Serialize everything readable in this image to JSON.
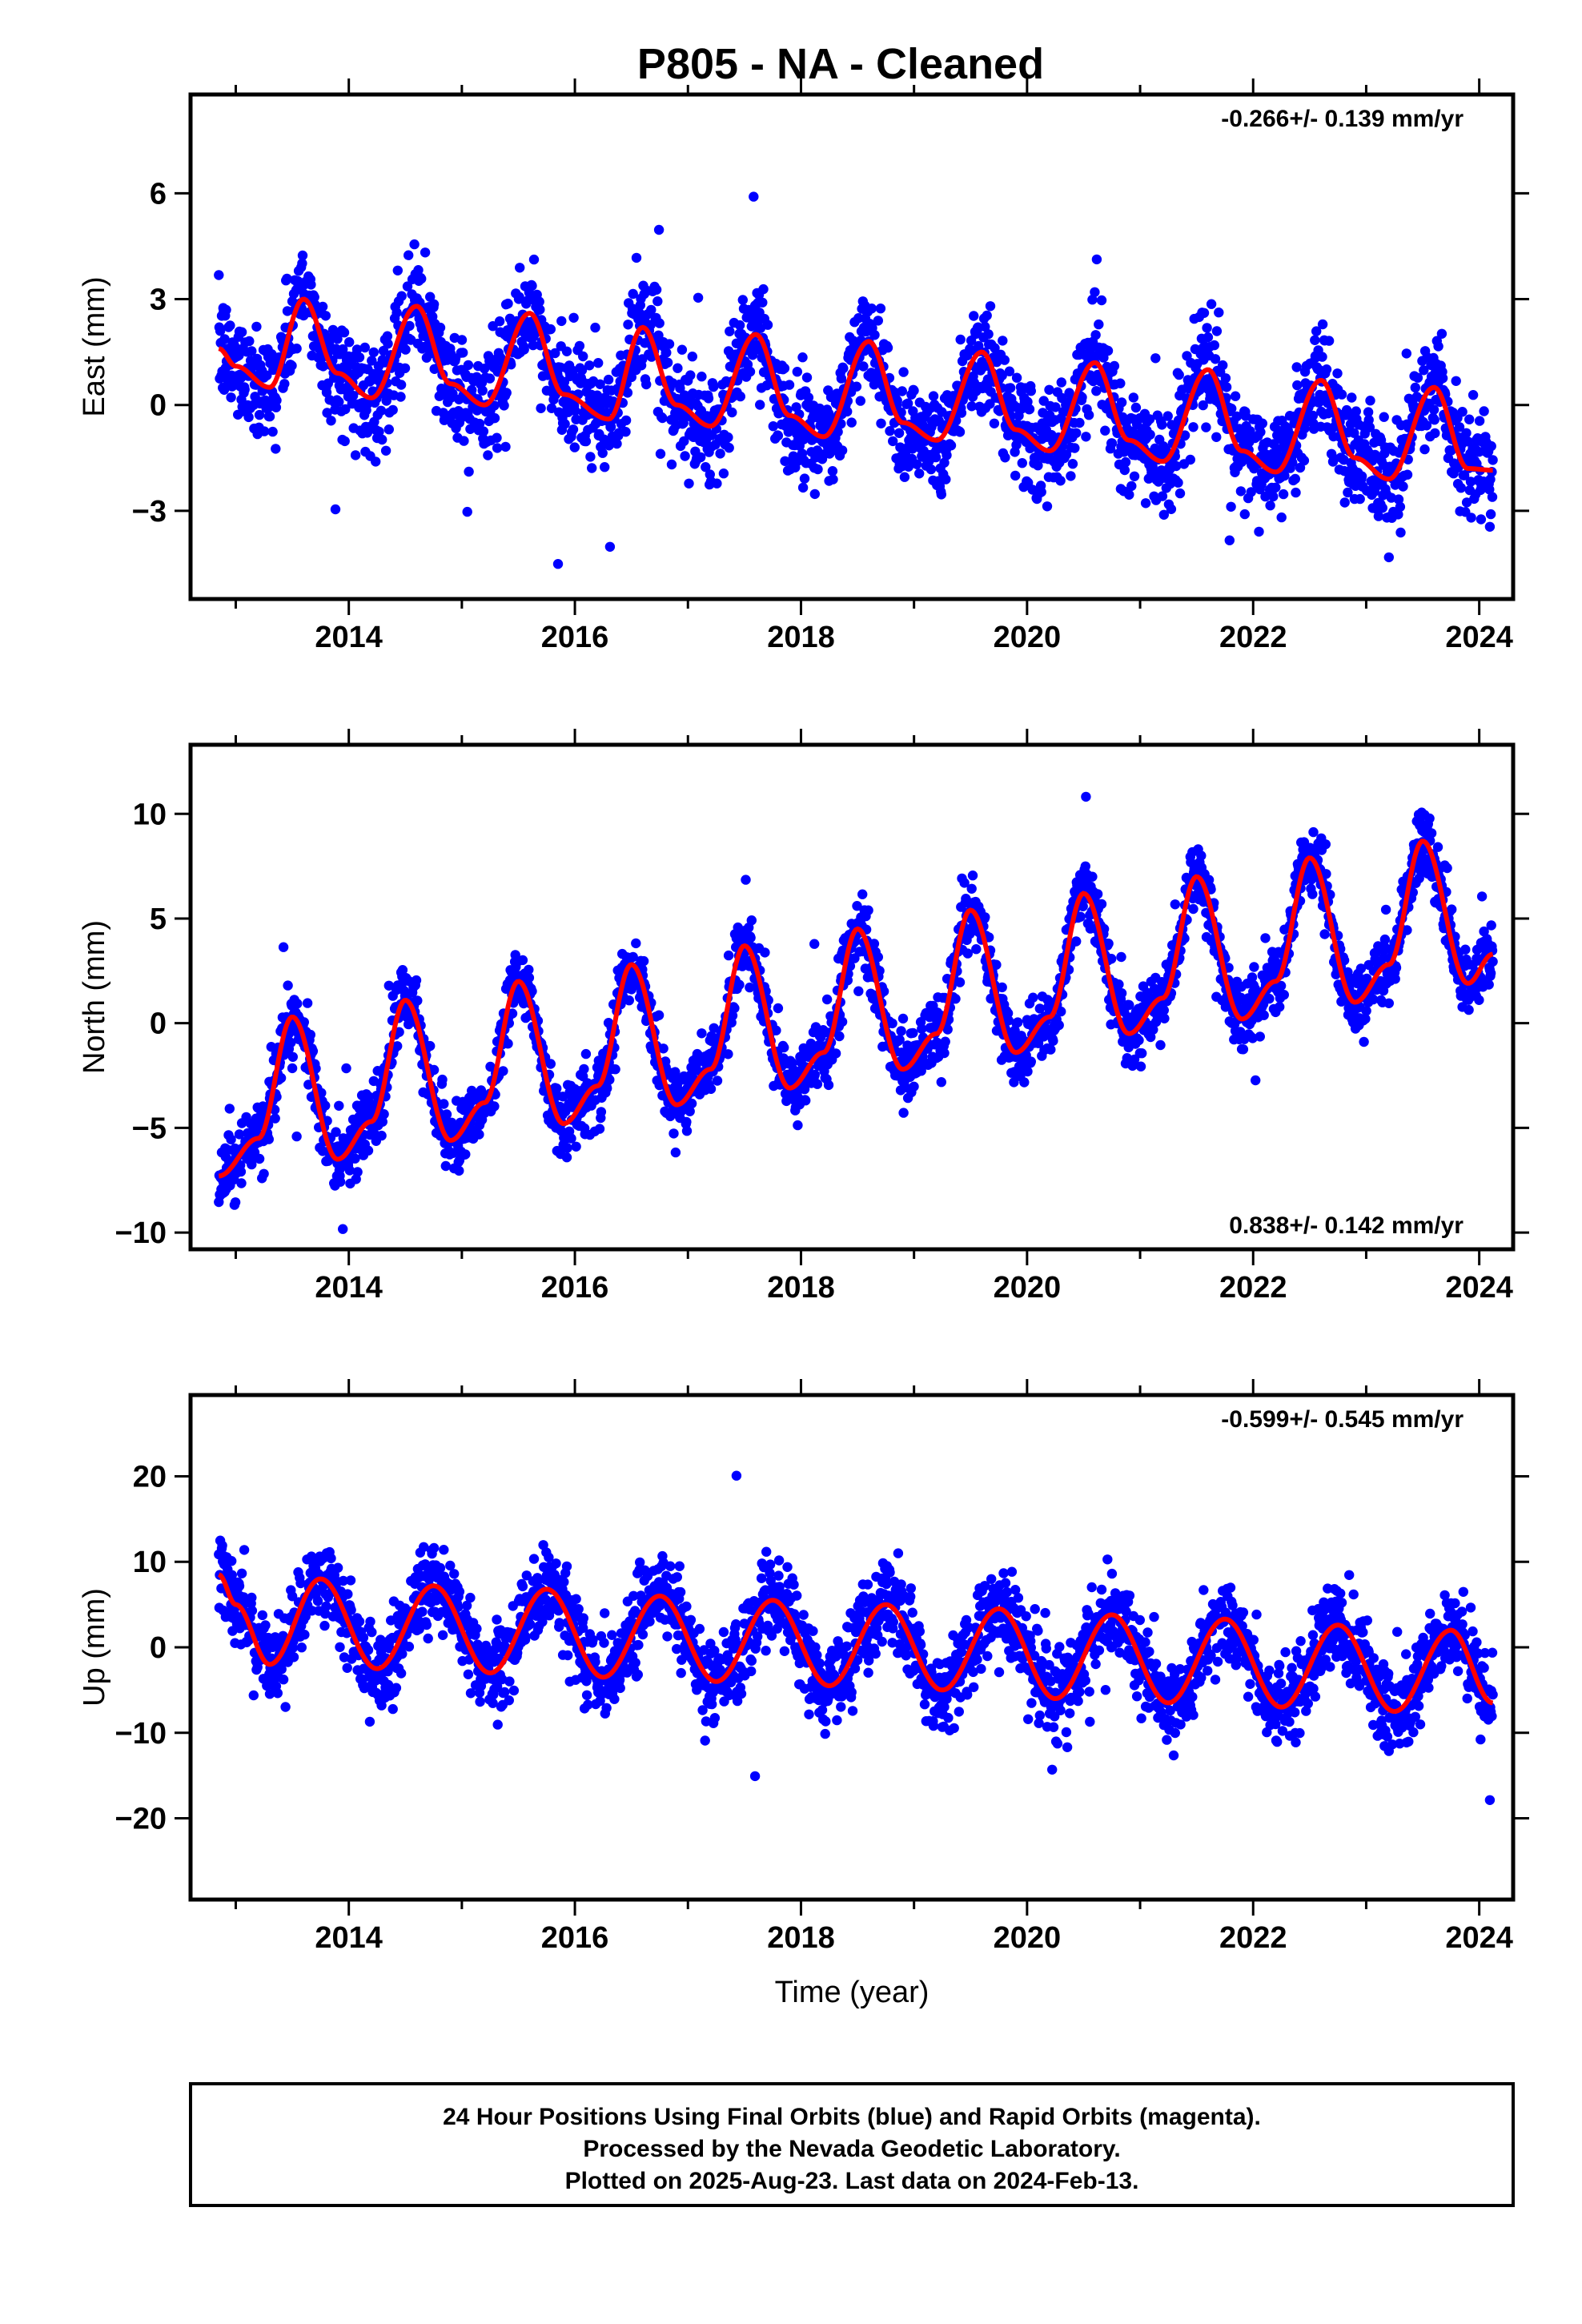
{
  "title": "P805  - NA - Cleaned",
  "colors": {
    "final_orbits": "#0000ff",
    "model_fit": "#ff0000",
    "frame": "#000000"
  },
  "footer": {
    "line1": "24 Hour Positions Using Final Orbits (blue) and Rapid Orbits (magenta).",
    "line2": "Processed by the Nevada Geodetic Laboratory.",
    "line3": "Plotted on 2025-Aug-23. Last data on 2024-Feb-13."
  },
  "chart_data": [
    {
      "type": "scatter",
      "component": "east",
      "ylabel": "East (mm)",
      "xlabel": "",
      "rate_label": "-0.266+/- 0.139 mm/yr",
      "rate_position": "top-right",
      "xlim": [
        2012.6,
        2024.3
      ],
      "ylim": [
        -5.5,
        8.8
      ],
      "xticks": [
        2014,
        2016,
        2018,
        2020,
        2022,
        2024
      ],
      "yticks": [
        -3,
        0,
        3,
        6
      ],
      "series": [
        {
          "kind": "points",
          "x_start": 2012.85,
          "x_end": 2024.12,
          "trend_mm_per_yr": -0.266,
          "annual_amplitude_mm": 1.2,
          "annual_phase_yr": 0.45,
          "semiannual_amplitude_mm": 0.45,
          "scatter_mm": 1.0,
          "offset_mm": 1.3
        },
        {
          "kind": "fit_line",
          "x": [
            2012.85,
            2013.0,
            2013.3,
            2013.6,
            2013.9,
            2014.2,
            2014.6,
            2014.9,
            2015.2,
            2015.6,
            2015.9,
            2016.3,
            2016.6,
            2016.9,
            2017.2,
            2017.6,
            2017.9,
            2018.2,
            2018.6,
            2018.9,
            2019.2,
            2019.6,
            2019.9,
            2020.2,
            2020.6,
            2020.9,
            2021.2,
            2021.6,
            2021.9,
            2022.2,
            2022.6,
            2022.9,
            2023.2,
            2023.6,
            2023.9,
            2024.12
          ],
          "y": [
            1.6,
            1.1,
            0.5,
            3.0,
            0.9,
            0.2,
            2.8,
            0.6,
            0.0,
            2.6,
            0.3,
            -0.4,
            2.2,
            0.0,
            -0.6,
            2.0,
            -0.3,
            -0.9,
            1.8,
            -0.5,
            -1.0,
            1.5,
            -0.7,
            -1.3,
            1.2,
            -1.0,
            -1.6,
            1.0,
            -1.3,
            -1.9,
            0.7,
            -1.5,
            -2.1,
            0.5,
            -1.8,
            -1.85
          ]
        }
      ]
    },
    {
      "type": "scatter",
      "component": "north",
      "ylabel": "North (mm)",
      "xlabel": "",
      "rate_label": "0.838+/- 0.142 mm/yr",
      "rate_position": "bottom-right",
      "xlim": [
        2012.6,
        2024.3
      ],
      "ylim": [
        -10.8,
        13.3
      ],
      "xticks": [
        2014,
        2016,
        2018,
        2020,
        2022,
        2024
      ],
      "yticks": [
        -10,
        -5,
        0,
        5,
        10
      ],
      "series": [
        {
          "kind": "points",
          "x_start": 2012.85,
          "x_end": 2024.12,
          "trend_mm_per_yr": 0.838,
          "annual_amplitude_mm": 3.3,
          "annual_phase_yr": 0.55,
          "semiannual_amplitude_mm": 0.6,
          "scatter_mm": 1.1,
          "offset_mm": -7.0
        },
        {
          "kind": "fit_line",
          "x": [
            2012.85,
            2013.2,
            2013.5,
            2013.9,
            2014.2,
            2014.5,
            2014.9,
            2015.2,
            2015.5,
            2015.9,
            2016.2,
            2016.5,
            2016.9,
            2017.2,
            2017.5,
            2017.9,
            2018.2,
            2018.5,
            2018.9,
            2019.2,
            2019.5,
            2019.9,
            2020.2,
            2020.5,
            2020.9,
            2021.2,
            2021.5,
            2021.9,
            2022.2,
            2022.5,
            2022.9,
            2023.2,
            2023.5,
            2023.9,
            2024.12
          ],
          "y": [
            -7.3,
            -5.5,
            0.3,
            -6.5,
            -4.7,
            1.1,
            -5.6,
            -3.8,
            2.0,
            -4.8,
            -3.0,
            2.8,
            -3.9,
            -2.2,
            3.7,
            -3.1,
            -1.4,
            4.5,
            -2.2,
            -0.5,
            5.4,
            -1.4,
            0.3,
            6.2,
            -0.5,
            1.2,
            7.0,
            0.2,
            2.0,
            7.9,
            1.0,
            2.8,
            8.7,
            1.9,
            3.3
          ]
        }
      ]
    },
    {
      "type": "scatter",
      "component": "up",
      "ylabel": "Up (mm)",
      "xlabel": "Time (year)",
      "rate_label": "-0.599+/- 0.545 mm/yr",
      "rate_position": "top-right",
      "xlim": [
        2012.6,
        2024.3
      ],
      "ylim": [
        -29.5,
        29.5
      ],
      "xticks": [
        2014,
        2016,
        2018,
        2020,
        2022,
        2024
      ],
      "yticks": [
        -20,
        -10,
        0,
        10,
        20
      ],
      "series": [
        {
          "kind": "points",
          "x_start": 2012.85,
          "x_end": 2024.12,
          "trend_mm_per_yr": -0.599,
          "annual_amplitude_mm": 5.0,
          "annual_phase_yr": 0.78,
          "semiannual_amplitude_mm": 0.8,
          "scatter_mm": 3.3,
          "offset_mm": 3.5
        },
        {
          "kind": "fit_line",
          "x": [
            2012.85,
            2013.0,
            2013.3,
            2013.75,
            2014.25,
            2014.75,
            2015.25,
            2015.75,
            2016.25,
            2016.75,
            2017.25,
            2017.75,
            2018.25,
            2018.75,
            2019.25,
            2019.75,
            2020.25,
            2020.75,
            2021.25,
            2021.75,
            2022.25,
            2022.75,
            2023.25,
            2023.75,
            2024.12
          ],
          "y": [
            8.5,
            5.0,
            -2.0,
            8.0,
            -2.5,
            7.2,
            -3.0,
            6.8,
            -3.5,
            6.0,
            -4.0,
            5.5,
            -4.5,
            5.0,
            -5.0,
            4.5,
            -6.0,
            3.8,
            -6.5,
            3.3,
            -7.0,
            2.6,
            -7.5,
            2.0,
            -6.5
          ]
        }
      ]
    }
  ]
}
